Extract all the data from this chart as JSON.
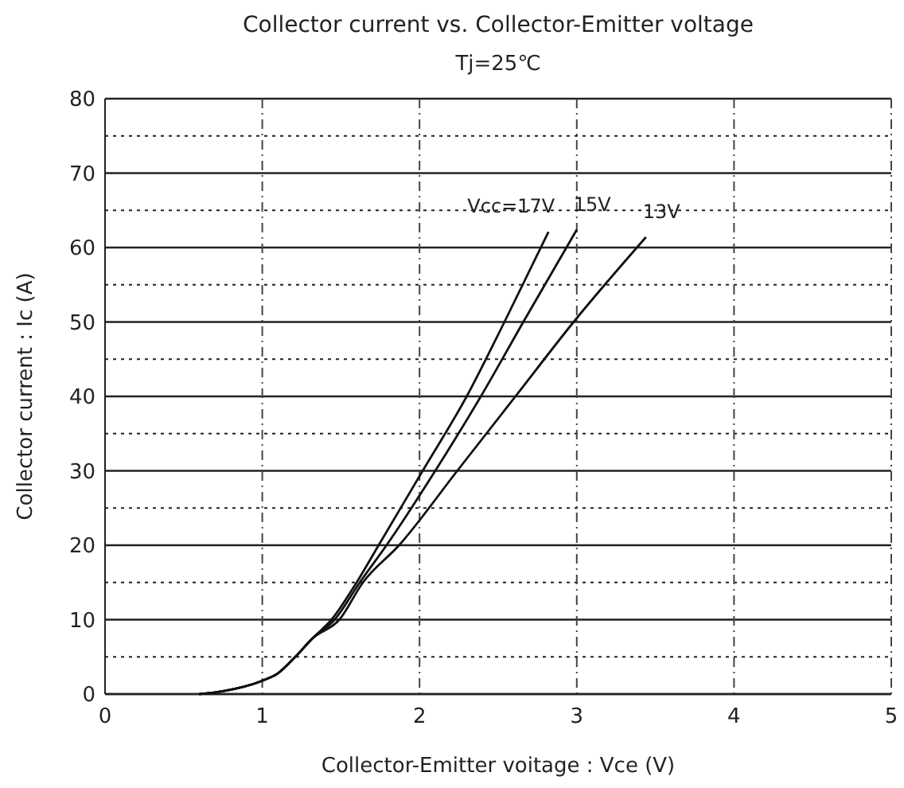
{
  "chart_data": {
    "type": "line",
    "title": "Collector current vs. Collector-Emitter voltage",
    "subtitle": "Tj=25℃",
    "xlabel": "Collector-Emitter voitage : Vce (V)",
    "ylabel": "Collector current : Ic (A)",
    "xlim": [
      0,
      5
    ],
    "xticks": [
      0,
      1,
      2,
      3,
      4,
      5
    ],
    "ylim": [
      0,
      80
    ],
    "yticks": [
      0,
      {
        "value": 5,
        "label": null
      },
      10,
      {
        "value": 15,
        "label": null
      },
      20,
      {
        "value": 25,
        "label": null
      },
      30,
      {
        "value": 35,
        "label": null
      },
      40,
      {
        "value": 45,
        "label": null
      },
      50,
      {
        "value": 55,
        "label": null
      },
      60,
      {
        "value": 65,
        "label": null
      },
      70,
      {
        "value": 75,
        "label": null
      },
      80
    ],
    "grid": true,
    "line_style": "solid",
    "series": [
      {
        "name": "Vcc=17V",
        "color": "#111111",
        "x": [
          0.6,
          0.75,
          1.0,
          1.1,
          1.21,
          1.32,
          1.44,
          1.6,
          1.74,
          2.02,
          2.3,
          2.54,
          2.82
        ],
        "values": [
          0,
          0.4,
          1.8,
          2.8,
          5,
          7.5,
          10,
          15,
          20,
          30,
          40,
          50,
          62.1
        ]
      },
      {
        "name": "15V",
        "color": "#111111",
        "x": [
          0.6,
          0.75,
          1.0,
          1.1,
          1.21,
          1.32,
          1.46,
          1.62,
          1.79,
          2.1,
          2.39,
          2.66,
          3.0
        ],
        "values": [
          0,
          0.4,
          1.8,
          2.8,
          5,
          7.5,
          10,
          15,
          20,
          30,
          40,
          50,
          62.4
        ]
      },
      {
        "name": "13V",
        "color": "#111111",
        "x": [
          0.6,
          0.75,
          1.0,
          1.1,
          1.21,
          1.32,
          1.49,
          1.64,
          1.87,
          2.24,
          2.61,
          2.98,
          3.44
        ],
        "values": [
          0,
          0.4,
          1.8,
          2.8,
          5,
          7.5,
          10,
          15,
          20,
          30,
          40,
          50,
          61.4
        ]
      }
    ]
  }
}
